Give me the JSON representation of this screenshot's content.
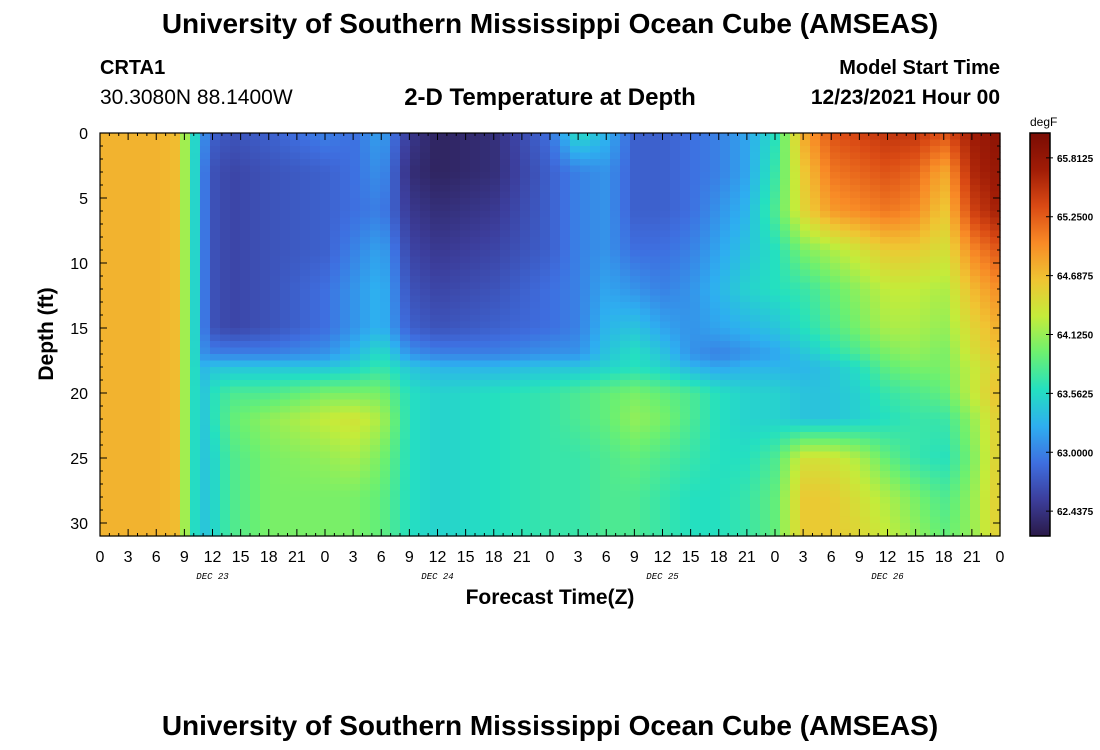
{
  "header": {
    "title": "University of Southern Mississippi Ocean Cube (AMSEAS)",
    "station": "CRTA1",
    "coords": "30.3080N  88.1400W",
    "subtitle": "2-D Temperature at Depth",
    "model_start_label": "Model Start Time",
    "model_start_value": "12/23/2021 Hour 00"
  },
  "footer": {
    "title": "University of Southern Mississippi Ocean Cube (AMSEAS)"
  },
  "colors": {
    "colormap": [
      "#2a1a48",
      "#3c3e9c",
      "#3e6fe0",
      "#2eaef0",
      "#24e0c0",
      "#6cf070",
      "#c4ec3a",
      "#f0c432",
      "#f88a26",
      "#da4a14",
      "#a01c06",
      "#7a0c04"
    ]
  },
  "chart_data": {
    "type": "heatmap",
    "title": "2-D Temperature at Depth",
    "xlabel": "Forecast Time(Z)",
    "ylabel": "Depth (ft)",
    "x_hours": [
      0,
      3,
      6,
      9,
      12,
      15,
      18,
      21,
      24,
      27,
      30,
      33,
      36,
      39,
      42,
      45,
      48,
      51,
      54,
      57,
      60,
      63,
      66,
      69,
      72,
      75,
      78,
      81,
      84,
      87,
      90,
      93,
      96
    ],
    "x_tick_labels": [
      "0",
      "3",
      "6",
      "9",
      "12",
      "15",
      "18",
      "21",
      "0",
      "3",
      "6",
      "9",
      "12",
      "15",
      "18",
      "21",
      "0",
      "3",
      "6",
      "9",
      "12",
      "15",
      "18",
      "21",
      "0",
      "3",
      "6",
      "9",
      "12",
      "15",
      "18",
      "21",
      "0"
    ],
    "day_labels": [
      {
        "label": "DEC 23",
        "hour": 12
      },
      {
        "label": "DEC 24",
        "hour": 36
      },
      {
        "label": "DEC 25",
        "hour": 60
      },
      {
        "label": "DEC 26",
        "hour": 84
      }
    ],
    "xlim": [
      0,
      96
    ],
    "ylim": [
      0,
      31
    ],
    "y_ticks": [
      0,
      5,
      10,
      15,
      20,
      25,
      30
    ],
    "y_tick_labels": [
      "0",
      "5",
      "10",
      "15",
      "20",
      "25",
      "30"
    ],
    "colorbar": {
      "units": "degF",
      "vmin": 62.2,
      "vmax": 66.05,
      "ticks": [
        65.8125,
        65.25,
        64.6875,
        64.125,
        63.5625,
        63.0,
        62.4375
      ],
      "tick_labels": [
        "65.8125",
        "65.2500",
        "64.6875",
        "64.1250",
        "63.5625",
        "63.0000",
        "62.4375"
      ]
    },
    "depths_ft": [
      0,
      3,
      6,
      9,
      12,
      15,
      17,
      18,
      20,
      22,
      25,
      28,
      31
    ],
    "times_h": [
      0,
      6,
      8,
      9,
      10,
      11,
      12,
      14,
      18,
      24,
      27,
      30,
      33,
      36,
      42,
      48,
      51,
      54,
      57,
      60,
      63,
      66,
      69,
      72,
      75,
      78,
      81,
      84,
      87,
      90,
      93,
      96
    ],
    "temperature_degF": [
      [
        64.75,
        64.75,
        64.7,
        64.2,
        63.6,
        63.1,
        62.8,
        62.7,
        62.8,
        63.0,
        62.9,
        63.2,
        62.5,
        62.3,
        62.4,
        62.9,
        63.6,
        63.3,
        62.8,
        62.8,
        62.9,
        63.0,
        63.2,
        63.6,
        64.8,
        65.3,
        65.4,
        65.5,
        65.5,
        65.3,
        65.7,
        65.9
      ],
      [
        64.75,
        64.75,
        64.7,
        64.2,
        63.6,
        63.0,
        62.7,
        62.6,
        62.7,
        62.8,
        62.9,
        63.1,
        62.4,
        62.3,
        62.4,
        62.8,
        63.0,
        63.1,
        62.8,
        62.8,
        62.9,
        63.0,
        63.2,
        63.7,
        64.6,
        65.1,
        65.2,
        65.3,
        65.2,
        64.8,
        65.6,
        65.8
      ],
      [
        64.75,
        64.75,
        64.7,
        64.2,
        63.6,
        63.0,
        62.7,
        62.6,
        62.7,
        62.8,
        62.9,
        63.0,
        62.5,
        62.4,
        62.5,
        62.8,
        63.0,
        63.1,
        62.8,
        62.8,
        62.9,
        63.1,
        63.3,
        63.8,
        64.5,
        64.9,
        65.0,
        65.1,
        65.0,
        64.6,
        65.4,
        65.7
      ],
      [
        64.75,
        64.75,
        64.7,
        64.2,
        63.6,
        63.0,
        62.7,
        62.6,
        62.7,
        62.8,
        63.0,
        63.2,
        62.6,
        62.5,
        62.6,
        62.8,
        63.0,
        63.1,
        62.9,
        62.9,
        63.0,
        63.2,
        63.4,
        63.6,
        64.0,
        64.2,
        64.4,
        64.6,
        64.6,
        64.4,
        65.0,
        65.3
      ],
      [
        64.75,
        64.75,
        64.7,
        64.2,
        63.6,
        63.0,
        62.7,
        62.6,
        62.7,
        62.9,
        63.1,
        63.3,
        62.7,
        62.6,
        62.7,
        62.9,
        63.0,
        63.2,
        63.1,
        63.0,
        63.1,
        63.3,
        63.5,
        63.6,
        63.7,
        63.9,
        64.1,
        64.3,
        64.3,
        64.2,
        64.7,
        65.0
      ],
      [
        64.75,
        64.75,
        64.7,
        64.2,
        63.6,
        63.0,
        62.7,
        62.6,
        62.7,
        62.9,
        63.1,
        63.3,
        62.8,
        62.7,
        62.8,
        62.9,
        63.0,
        63.3,
        63.4,
        63.2,
        63.1,
        63.2,
        63.3,
        63.4,
        63.6,
        63.8,
        64.0,
        64.2,
        64.2,
        64.1,
        64.5,
        64.8
      ],
      [
        64.75,
        64.75,
        64.7,
        64.2,
        63.6,
        63.1,
        63.0,
        63.0,
        63.0,
        63.1,
        63.3,
        63.6,
        63.1,
        63.0,
        63.0,
        63.1,
        63.1,
        63.4,
        63.6,
        63.4,
        63.1,
        63.0,
        63.1,
        63.2,
        63.4,
        63.6,
        63.8,
        64.0,
        64.1,
        64.0,
        64.4,
        64.7
      ],
      [
        64.75,
        64.75,
        64.7,
        64.2,
        63.6,
        63.3,
        63.4,
        63.4,
        63.4,
        63.4,
        63.5,
        63.7,
        63.4,
        63.3,
        63.3,
        63.4,
        63.4,
        63.5,
        63.6,
        63.5,
        63.3,
        63.2,
        63.3,
        63.3,
        63.3,
        63.4,
        63.6,
        63.9,
        64.0,
        64.0,
        64.3,
        64.6
      ],
      [
        64.75,
        64.75,
        64.7,
        64.2,
        63.6,
        63.4,
        63.6,
        63.8,
        63.8,
        64.0,
        64.0,
        64.0,
        63.6,
        63.5,
        63.6,
        63.7,
        63.8,
        63.9,
        64.0,
        63.9,
        63.8,
        63.6,
        63.5,
        63.5,
        63.4,
        63.4,
        63.5,
        63.7,
        63.8,
        63.9,
        64.3,
        64.7
      ],
      [
        64.75,
        64.75,
        64.7,
        64.2,
        63.6,
        63.4,
        63.6,
        63.9,
        64.1,
        64.3,
        64.4,
        64.2,
        63.6,
        63.5,
        63.6,
        63.7,
        63.8,
        63.9,
        64.1,
        64.0,
        63.8,
        63.6,
        63.5,
        63.5,
        63.4,
        63.4,
        63.5,
        63.6,
        63.7,
        63.7,
        64.1,
        64.6
      ],
      [
        64.75,
        64.75,
        64.7,
        64.2,
        63.6,
        63.4,
        63.5,
        63.8,
        64.0,
        64.1,
        64.2,
        64.0,
        63.6,
        63.5,
        63.6,
        63.7,
        63.7,
        63.8,
        63.9,
        63.8,
        63.7,
        63.6,
        63.6,
        63.8,
        64.4,
        64.4,
        64.2,
        63.9,
        63.7,
        63.6,
        64.0,
        64.6
      ],
      [
        64.75,
        64.75,
        64.7,
        64.2,
        63.6,
        63.4,
        63.5,
        63.8,
        64.0,
        64.0,
        64.0,
        63.9,
        63.6,
        63.5,
        63.6,
        63.7,
        63.7,
        63.8,
        63.8,
        63.7,
        63.6,
        63.6,
        63.7,
        63.9,
        64.6,
        64.6,
        64.4,
        64.2,
        64.0,
        63.8,
        64.1,
        64.6
      ],
      [
        64.75,
        64.75,
        64.7,
        64.2,
        63.6,
        63.4,
        63.5,
        63.8,
        64.0,
        64.0,
        64.0,
        63.9,
        63.6,
        63.5,
        63.6,
        63.7,
        63.7,
        63.8,
        63.8,
        63.7,
        63.6,
        63.6,
        63.7,
        63.9,
        64.6,
        64.6,
        64.5,
        64.3,
        64.1,
        63.9,
        64.1,
        64.6
      ]
    ]
  }
}
